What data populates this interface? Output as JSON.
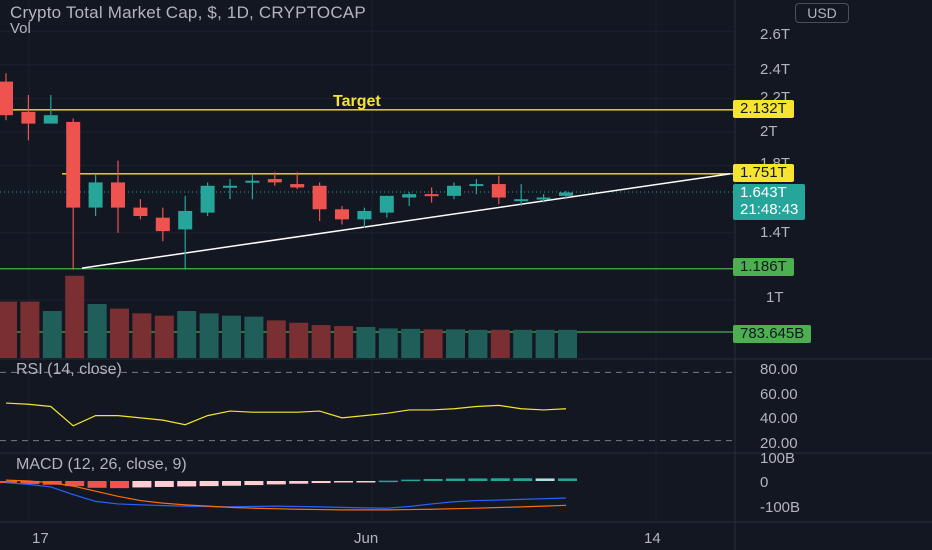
{
  "header": {
    "title": "Crypto Total Market Cap, $, 1D, CRYPTOCAP",
    "volume_label": "Vol",
    "currency": "USD"
  },
  "annotation": {
    "text": "Target",
    "color": "#f5e430"
  },
  "price_tags": [
    {
      "text": "2.132T",
      "bg": "#f5e430",
      "fg": "#131722"
    },
    {
      "text": "1.751T",
      "bg": "#f5e430",
      "fg": "#131722"
    },
    {
      "text": "1.643T",
      "sub": "21:48:43",
      "bg": "#26a69a",
      "fg": "#ffffff"
    },
    {
      "text": "1.186T",
      "bg": "#4caf50",
      "fg": "#131722"
    },
    {
      "text": "783.645B",
      "bg": "#4caf50",
      "fg": "#131722"
    }
  ],
  "price_axis_labels": [
    "2.6T",
    "2.4T",
    "2.2T",
    "2T",
    "1.8T",
    "1.4T",
    "1T"
  ],
  "rsi_axis_labels": [
    "80.00",
    "60.00",
    "40.00",
    "20.00"
  ],
  "macd_axis_labels": [
    "100B",
    "0",
    "-100B"
  ],
  "x_axis_labels": [
    "17",
    "Jun",
    "14"
  ],
  "colors": {
    "up": "#26a69a",
    "down": "#ef5350",
    "rsi": "#f5e430",
    "macd": "#2962ff",
    "signal": "#ff6d00"
  },
  "chart_data": [
    {
      "type": "candlestick",
      "title": "Crypto Total Market Cap, $, 1D, CRYPTOCAP",
      "ylim": [
        0.8,
        2.7
      ],
      "unit": "T",
      "levels": [
        2.132,
        1.751,
        1.186
      ],
      "last_price": 1.643,
      "trendline": {
        "from": 1.19,
        "to": 1.751
      },
      "ohlc": [
        [
          2.3,
          2.35,
          2.07,
          2.1
        ],
        [
          2.12,
          2.22,
          1.95,
          2.05
        ],
        [
          2.05,
          2.22,
          2.05,
          2.1
        ],
        [
          2.06,
          2.08,
          1.18,
          1.55
        ],
        [
          1.55,
          1.75,
          1.5,
          1.7
        ],
        [
          1.7,
          1.83,
          1.4,
          1.55
        ],
        [
          1.55,
          1.6,
          1.48,
          1.5
        ],
        [
          1.49,
          1.55,
          1.35,
          1.41
        ],
        [
          1.42,
          1.62,
          1.18,
          1.53
        ],
        [
          1.52,
          1.7,
          1.5,
          1.68
        ],
        [
          1.68,
          1.72,
          1.6,
          1.68
        ],
        [
          1.7,
          1.75,
          1.6,
          1.71
        ],
        [
          1.72,
          1.76,
          1.68,
          1.7
        ],
        [
          1.69,
          1.76,
          1.66,
          1.67
        ],
        [
          1.68,
          1.7,
          1.47,
          1.54
        ],
        [
          1.54,
          1.56,
          1.45,
          1.48
        ],
        [
          1.48,
          1.55,
          1.43,
          1.53
        ],
        [
          1.52,
          1.62,
          1.49,
          1.62
        ],
        [
          1.61,
          1.64,
          1.56,
          1.63
        ],
        [
          1.63,
          1.67,
          1.58,
          1.62
        ],
        [
          1.62,
          1.7,
          1.6,
          1.68
        ],
        [
          1.69,
          1.72,
          1.63,
          1.69
        ],
        [
          1.69,
          1.74,
          1.57,
          1.61
        ],
        [
          1.6,
          1.69,
          1.56,
          1.6
        ],
        [
          1.6,
          1.63,
          1.58,
          1.61
        ],
        [
          1.62,
          1.65,
          1.6,
          1.64
        ]
      ]
    },
    {
      "type": "bar",
      "series": [
        {
          "name": "Vol",
          "values": [
            120,
            120,
            100,
            175,
            115,
            105,
            95,
            90,
            100,
            95,
            90,
            88,
            80,
            75,
            70,
            68,
            66,
            63,
            62,
            61,
            61,
            60,
            60,
            60,
            60,
            60
          ]
        }
      ]
    },
    {
      "type": "line",
      "title": "RSI (14, close)",
      "ylim": [
        10,
        90
      ],
      "series": [
        {
          "name": "RSI",
          "values": [
            53,
            52,
            50,
            33,
            42,
            42,
            40,
            38,
            34,
            42,
            46,
            45,
            45,
            45,
            46,
            40,
            42,
            44,
            47,
            47,
            48,
            50,
            51,
            48,
            47,
            48
          ]
        }
      ]
    },
    {
      "type": "bar",
      "title": "MACD (12, 26, close, 9)",
      "ylim": [
        -170,
        130
      ],
      "series": [
        {
          "name": "MACD",
          "values": [
            -10,
            -20,
            -35,
            -80,
            -120,
            -135,
            -140,
            -145,
            -148,
            -150,
            -152,
            -150,
            -148,
            -150,
            -152,
            -155,
            -158,
            -160,
            -150,
            -135,
            -122,
            -115,
            -112,
            -108,
            -104,
            -100
          ]
        },
        {
          "name": "Signal",
          "values": [
            5,
            0,
            -10,
            -30,
            -60,
            -90,
            -115,
            -130,
            -140,
            -148,
            -155,
            -160,
            -163,
            -166,
            -168,
            -170,
            -170,
            -170,
            -168,
            -166,
            -163,
            -160,
            -156,
            -152,
            -148,
            -143
          ]
        },
        {
          "name": "Histogram",
          "values": [
            -12,
            -18,
            -22,
            -30,
            -40,
            -42,
            -38,
            -35,
            -32,
            -30,
            -28,
            -24,
            -20,
            -16,
            -12,
            -8,
            -4,
            2,
            8,
            12,
            14,
            15,
            16,
            16,
            15,
            15
          ]
        }
      ]
    }
  ]
}
